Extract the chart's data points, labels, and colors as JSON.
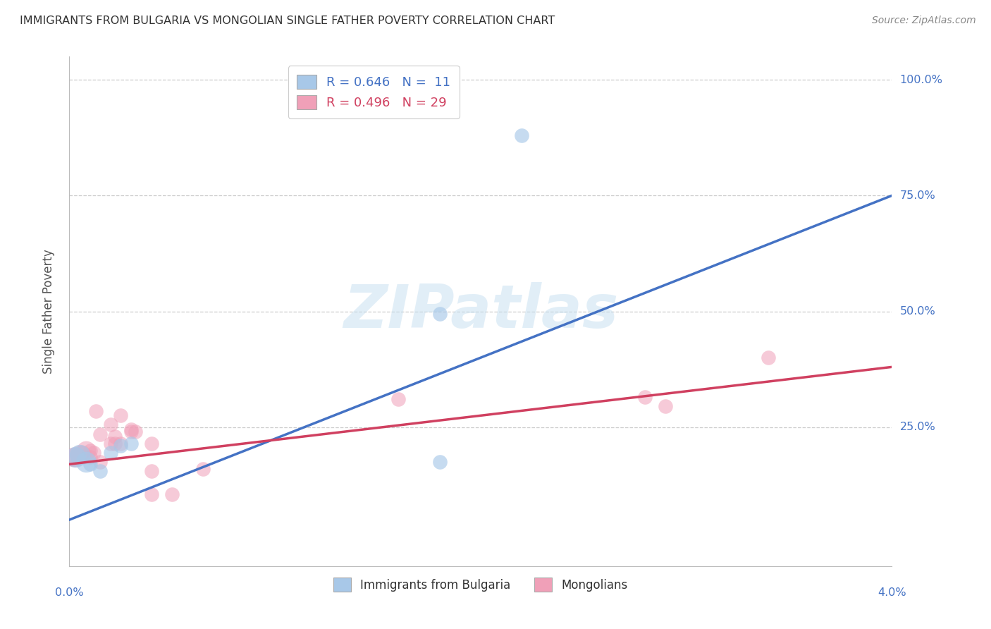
{
  "title": "IMMIGRANTS FROM BULGARIA VS MONGOLIAN SINGLE FATHER POVERTY CORRELATION CHART",
  "source": "Source: ZipAtlas.com",
  "ylabel": "Single Father Poverty",
  "ytick_labels": [
    "100.0%",
    "75.0%",
    "50.0%",
    "25.0%"
  ],
  "ytick_values": [
    1.0,
    0.75,
    0.5,
    0.25
  ],
  "xlim": [
    0.0,
    0.04
  ],
  "ylim": [
    -0.05,
    1.05
  ],
  "bulgaria_points": [
    [
      0.0003,
      0.185
    ],
    [
      0.0005,
      0.19
    ],
    [
      0.0008,
      0.175
    ],
    [
      0.001,
      0.17
    ],
    [
      0.0015,
      0.155
    ],
    [
      0.002,
      0.195
    ],
    [
      0.0025,
      0.21
    ],
    [
      0.003,
      0.215
    ],
    [
      0.018,
      0.175
    ],
    [
      0.018,
      0.495
    ],
    [
      0.022,
      0.88
    ]
  ],
  "mongolia_points": [
    [
      0.0002,
      0.185
    ],
    [
      0.0003,
      0.185
    ],
    [
      0.0005,
      0.19
    ],
    [
      0.0006,
      0.19
    ],
    [
      0.0008,
      0.2
    ],
    [
      0.001,
      0.185
    ],
    [
      0.001,
      0.2
    ],
    [
      0.0012,
      0.195
    ],
    [
      0.0013,
      0.285
    ],
    [
      0.0015,
      0.235
    ],
    [
      0.0015,
      0.175
    ],
    [
      0.002,
      0.255
    ],
    [
      0.002,
      0.215
    ],
    [
      0.0022,
      0.215
    ],
    [
      0.0022,
      0.23
    ],
    [
      0.0025,
      0.275
    ],
    [
      0.0025,
      0.215
    ],
    [
      0.003,
      0.24
    ],
    [
      0.003,
      0.245
    ],
    [
      0.0032,
      0.24
    ],
    [
      0.004,
      0.215
    ],
    [
      0.004,
      0.155
    ],
    [
      0.004,
      0.105
    ],
    [
      0.005,
      0.105
    ],
    [
      0.0065,
      0.16
    ],
    [
      0.016,
      0.31
    ],
    [
      0.028,
      0.315
    ],
    [
      0.029,
      0.295
    ],
    [
      0.034,
      0.4
    ]
  ],
  "bulgaria_color": "#a8c8e8",
  "mongolia_color": "#f0a0b8",
  "bulgaria_line_color": "#4472c4",
  "mongolia_line_color": "#d04060",
  "grid_color": "#cccccc",
  "background_color": "#ffffff",
  "watermark_text": "ZIPatlas",
  "legend_bg": "#ffffff",
  "legend_edge": "#cccccc"
}
